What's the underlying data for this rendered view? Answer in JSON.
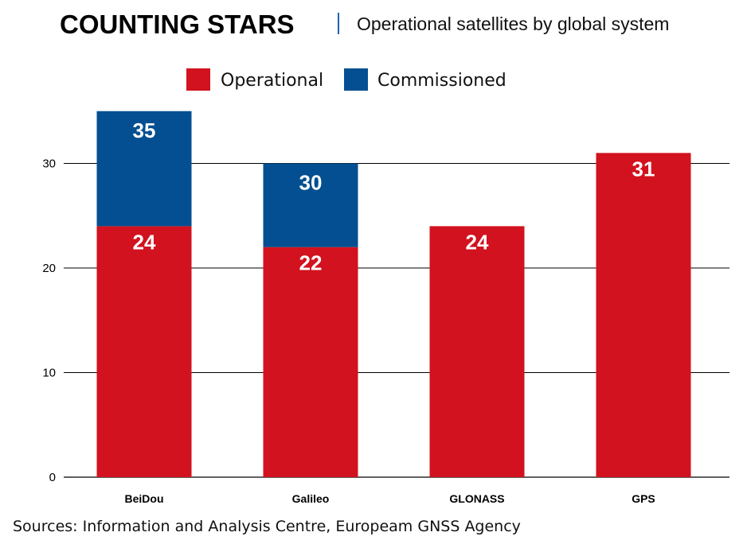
{
  "title": "COUNTING STARS",
  "subtitle": "Operational satellites by global system",
  "source": "Sources: Information and Analysis Centre, Europeam GNSS Agency",
  "colors": {
    "operational": "#d2121e",
    "commissioned": "#034f91",
    "title_divider": "#1f63b0"
  },
  "chart_data": {
    "type": "bar",
    "stacked": true,
    "categories": [
      "BeiDou",
      "Galileo",
      "GLONASS",
      "GPS"
    ],
    "series": [
      {
        "name": "Operational",
        "values": [
          24,
          22,
          24,
          31
        ]
      },
      {
        "name": "Commissioned",
        "values": [
          11,
          8,
          0,
          0
        ]
      }
    ],
    "totals": [
      35,
      30,
      24,
      31
    ],
    "data_labels": {
      "operational": [
        "24",
        "22",
        "24",
        "31"
      ],
      "commissioned": [
        "35",
        "30",
        "",
        ""
      ]
    },
    "ylim": [
      0,
      35
    ],
    "yticks": [
      0,
      10,
      20,
      30
    ],
    "grid": true,
    "legend": "top-center"
  }
}
